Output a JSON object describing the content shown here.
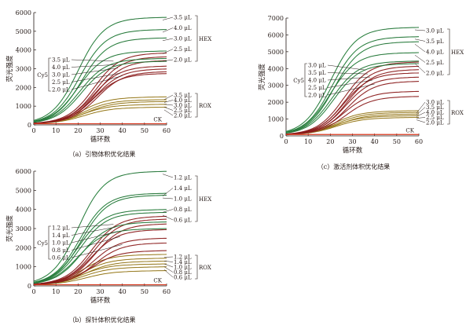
{
  "chart_data": [
    {
      "type": "line",
      "caption": "（a）引物体积优化结果",
      "xlabel": "循环数",
      "ylabel": "荧光强度",
      "xlim": [
        0,
        60
      ],
      "ylim": [
        0,
        6000
      ],
      "xticks": [
        0,
        10,
        20,
        30,
        40,
        50,
        60
      ],
      "yticks": [
        0,
        1000,
        2000,
        3000,
        4000,
        5000,
        6000
      ],
      "groups": [
        {
          "name": "HEX",
          "color": "#2e9e4a",
          "midpoint": 20,
          "labels": [
            "3.5 μL",
            "4.0 μL",
            "3.0 μL",
            "2.5 μL",
            "2.0 μL"
          ],
          "plateaus": [
            5600,
            4950,
            4500,
            3800,
            3400,
            3250
          ]
        },
        {
          "name": "Cy5",
          "color": "#8b1c1c",
          "midpoint": 27,
          "labels": [
            "3.5 μL",
            "4.0 μL",
            "3.0 μL",
            "2.5 μL",
            "2.0 μL"
          ],
          "plateaus": [
            3700,
            3500,
            3300,
            3000,
            2850,
            2700,
            2600
          ]
        },
        {
          "name": "ROX",
          "color": "#c9a227",
          "midpoint": 22,
          "labels": [
            "3.5 μL",
            "4.0 μL",
            "3.0 μL",
            "2.5 μL",
            "2.0 μL"
          ],
          "plateaus": [
            1350,
            1200,
            1100,
            950,
            800
          ]
        }
      ],
      "ck": {
        "label": "CK",
        "value": 60
      }
    },
    {
      "type": "line",
      "caption": "（c）激活剂体积优化结果",
      "xlabel": "循环数",
      "ylabel": "荧光强度",
      "xlim": [
        0,
        60
      ],
      "ylim": [
        0,
        7000
      ],
      "xticks": [
        0,
        10,
        20,
        30,
        40,
        50,
        60
      ],
      "yticks": [
        0,
        1000,
        2000,
        3000,
        4000,
        5000,
        6000,
        7000
      ],
      "groups": [
        {
          "name": "HEX",
          "color": "#2e9e4a",
          "midpoint": 20,
          "labels": [
            "3.0 μL",
            "3.5 μL",
            "4.0 μL",
            "2.5 μL",
            "2.0 μL"
          ],
          "plateaus": [
            6300,
            5750,
            5450,
            4800,
            4300,
            4150
          ]
        },
        {
          "name": "Cy5",
          "color": "#8b1c1c",
          "midpoint": 26,
          "labels": [
            "3.0 μL",
            "3.5 μL",
            "4.0 μL",
            "2.5 μL",
            "2.0 μL"
          ],
          "plateaus": [
            4250,
            4000,
            3800,
            3600,
            3350,
            3100,
            2500,
            2200
          ]
        },
        {
          "name": "ROX",
          "color": "#c9a227",
          "midpoint": 22,
          "labels": [
            "3.0 μL",
            "3.5 μL",
            "4.0 μL",
            "2.5 μL",
            "2.0 μL"
          ],
          "plateaus": [
            1350,
            1250,
            1150,
            1050,
            950
          ]
        }
      ],
      "ck": {
        "label": "CK",
        "value": 80
      }
    },
    {
      "type": "line",
      "caption": "（b）探针体积优化结果",
      "xlabel": "循环数",
      "ylabel": "荧光强度",
      "xlim": [
        0,
        60
      ],
      "ylim": [
        0,
        6000
      ],
      "xticks": [
        0,
        10,
        20,
        30,
        40,
        50,
        60
      ],
      "yticks": [
        0,
        1000,
        2000,
        3000,
        4000,
        5000,
        6000
      ],
      "groups": [
        {
          "name": "HEX",
          "color": "#2e9e4a",
          "midpoint": 20,
          "labels": [
            "1.2 μL",
            "1.4 μL",
            "1.0 μL",
            "0.8 μL",
            "0.6 μL"
          ],
          "plateaus": [
            5850,
            4700,
            4600,
            3850,
            3700,
            3200,
            2850
          ]
        },
        {
          "name": "Cy5",
          "color": "#8b1c1c",
          "midpoint": 26,
          "labels": [
            "1.2 μL",
            "1.4 μL",
            "1.0 μL",
            "0.8 μL",
            "0.6 μL"
          ],
          "plateaus": [
            3500,
            3350,
            3100,
            2800,
            2350,
            2100,
            1700
          ]
        },
        {
          "name": "ROX",
          "color": "#c9a227",
          "midpoint": 22,
          "labels": [
            "1.2 μL",
            "1.4 μL",
            "1.0 μL",
            "0.8 μL",
            "0.6 μL"
          ],
          "plateaus": [
            1500,
            1300,
            1150,
            1000,
            850,
            650
          ]
        }
      ],
      "ck": {
        "label": "CK",
        "value": 60
      }
    }
  ]
}
